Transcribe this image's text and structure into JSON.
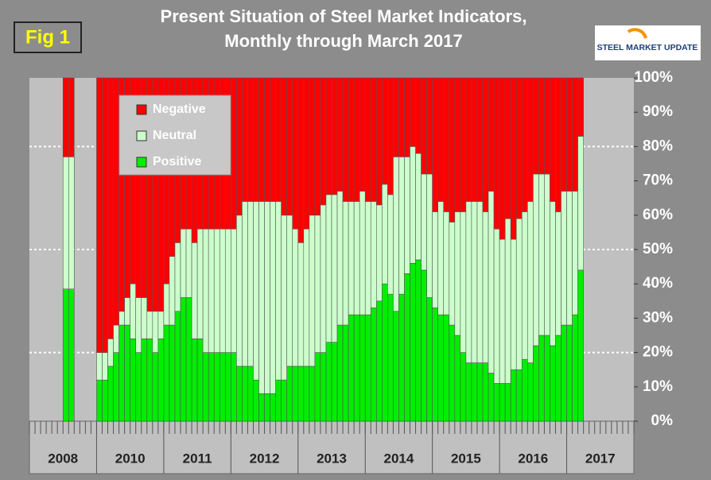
{
  "chart_data": {
    "type": "stacked-bar",
    "title": [
      "Present Situation of Steel Market Indicators,",
      "Monthly through March 2017"
    ],
    "figure_label": "Fig 1",
    "logo": "STEEL MARKET UPDATE",
    "x_groups": [
      "2008",
      "2010",
      "2011",
      "2012",
      "2013",
      "2014",
      "2015",
      "2016",
      "2017"
    ],
    "categories": [
      null,
      null,
      null,
      null,
      null,
      null,
      null,
      null,
      null,
      null,
      null,
      null,
      null,
      null,
      null,
      null,
      null,
      null,
      null,
      null,
      null,
      null,
      null,
      null,
      null,
      null,
      null,
      null,
      null,
      null,
      null,
      null,
      null,
      null,
      null,
      null,
      null,
      null,
      null,
      null,
      null,
      null,
      null,
      null,
      null,
      null,
      null,
      null,
      null,
      null,
      null,
      null,
      null,
      null,
      null,
      null,
      null,
      null,
      null,
      null,
      null,
      null,
      null,
      null,
      null,
      null,
      null,
      null,
      null,
      null,
      null,
      null,
      null,
      null,
      null,
      null,
      null,
      null,
      null,
      null,
      null,
      null,
      null,
      null,
      null,
      null,
      null,
      null,
      null,
      null,
      null,
      null,
      null,
      null,
      null,
      null,
      null,
      null,
      null,
      null,
      null,
      null,
      null,
      null,
      null,
      null,
      null,
      null
    ],
    "series": [
      {
        "name": "Negative",
        "color": "#ff0000",
        "values": [
          null,
          null,
          null,
          null,
          null,
          null,
          23,
          23,
          null,
          null,
          null,
          null,
          80,
          80,
          76,
          72,
          68,
          64,
          60,
          64,
          64,
          68,
          68,
          68,
          60,
          52,
          48,
          44,
          44,
          48,
          44,
          44,
          44,
          44,
          44,
          44,
          44,
          40,
          36,
          36,
          36,
          36,
          36,
          36,
          36,
          40,
          40,
          44,
          48,
          44,
          40,
          40,
          37,
          34,
          34,
          33,
          36,
          36,
          36,
          33,
          36,
          36,
          37,
          31,
          34,
          23,
          23,
          23,
          20,
          22,
          28,
          28,
          39,
          36,
          39,
          42,
          39,
          39,
          36,
          36,
          36,
          39,
          33,
          44,
          47,
          41,
          47,
          41,
          39,
          36,
          28,
          28,
          28,
          36,
          39,
          33,
          33,
          33,
          17,
          null,
          null,
          null,
          null,
          null,
          null,
          null,
          null,
          null
        ]
      },
      {
        "name": "Neutral",
        "color": "#ccffcc",
        "values": [
          null,
          null,
          null,
          null,
          null,
          null,
          38.5,
          38.5,
          null,
          null,
          null,
          null,
          8,
          8,
          8,
          8,
          4,
          8,
          16,
          16,
          12,
          8,
          12,
          8,
          12,
          20,
          20,
          20,
          20,
          28,
          32,
          36,
          36,
          36,
          36,
          36,
          36,
          44,
          48,
          48,
          52,
          56,
          56,
          56,
          52,
          48,
          44,
          40,
          36,
          40,
          44,
          40,
          43,
          43,
          43,
          39,
          36,
          33,
          33,
          36,
          33,
          31,
          28,
          29,
          29,
          45,
          40,
          34,
          34,
          31,
          28,
          36,
          28,
          33,
          30,
          30,
          36,
          41,
          47,
          47,
          47,
          44,
          53,
          45,
          42,
          48,
          38,
          44,
          43,
          47,
          50,
          47,
          47,
          42,
          36,
          39,
          39,
          36,
          39,
          null,
          null,
          null,
          null,
          null,
          null,
          null,
          null,
          null
        ]
      },
      {
        "name": "Positive",
        "color": "#00ee00",
        "values": [
          null,
          null,
          null,
          null,
          null,
          null,
          38.5,
          38.5,
          null,
          null,
          null,
          null,
          12,
          12,
          16,
          20,
          28,
          28,
          24,
          20,
          24,
          24,
          20,
          24,
          28,
          28,
          32,
          36,
          36,
          24,
          24,
          20,
          20,
          20,
          20,
          20,
          20,
          16,
          16,
          16,
          12,
          8,
          8,
          8,
          12,
          12,
          16,
          16,
          16,
          16,
          16,
          20,
          20,
          23,
          23,
          28,
          28,
          31,
          31,
          31,
          31,
          33,
          35,
          40,
          37,
          32,
          37,
          43,
          46,
          47,
          44,
          36,
          33,
          31,
          31,
          28,
          25,
          20,
          17,
          17,
          17,
          17,
          14,
          11,
          11,
          11,
          15,
          15,
          18,
          17,
          22,
          25,
          25,
          22,
          25,
          28,
          28,
          31,
          44,
          null,
          null,
          null,
          null,
          null,
          null,
          null,
          null,
          null
        ]
      }
    ],
    "ylim": [
      0,
      100
    ],
    "yticks": [
      {
        "value": 0,
        "label": "0%"
      },
      {
        "value": 10,
        "label": "10%"
      },
      {
        "value": 20,
        "label": "20%"
      },
      {
        "value": 30,
        "label": "30%"
      },
      {
        "value": 40,
        "label": "40%"
      },
      {
        "value": 50,
        "label": "50%"
      },
      {
        "value": 60,
        "label": "60%"
      },
      {
        "value": 70,
        "label": "70%"
      },
      {
        "value": 80,
        "label": "80%"
      },
      {
        "value": 90,
        "label": "90%"
      },
      {
        "value": 100,
        "label": "100%"
      }
    ],
    "reference_lines": [
      20,
      50,
      80
    ]
  }
}
